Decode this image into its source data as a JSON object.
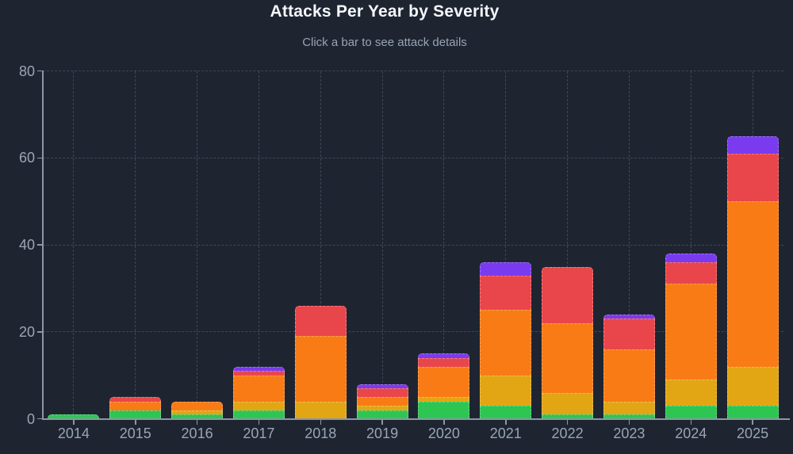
{
  "chart_data": {
    "type": "bar",
    "stacked": true,
    "title": "Attacks Per Year by Severity",
    "subtitle": "Click a bar to see attack details",
    "categories": [
      "2014",
      "2015",
      "2016",
      "2017",
      "2018",
      "2019",
      "2020",
      "2021",
      "2022",
      "2023",
      "2024",
      "2025"
    ],
    "series": [
      {
        "name": "green",
        "color": "#2dc653",
        "values": [
          1,
          2,
          1,
          2,
          0,
          2,
          4,
          3,
          1,
          1,
          3,
          3
        ]
      },
      {
        "name": "yellow",
        "color": "#e2a614",
        "values": [
          0,
          0,
          1,
          2,
          4,
          1,
          1,
          7,
          5,
          3,
          6,
          9
        ]
      },
      {
        "name": "orange",
        "color": "#f97b16",
        "values": [
          0,
          2,
          2,
          6,
          15,
          2,
          7,
          15,
          16,
          12,
          22,
          38
        ]
      },
      {
        "name": "red",
        "color": "#e9464b",
        "values": [
          0,
          1,
          0,
          1,
          7,
          2,
          2,
          8,
          13,
          7,
          5,
          11
        ]
      },
      {
        "name": "purple",
        "color": "#7a3bf0",
        "values": [
          0,
          0,
          0,
          1,
          0,
          1,
          1,
          3,
          0,
          1,
          2,
          4
        ]
      }
    ],
    "totals": [
      1,
      5,
      4,
      12,
      26,
      8,
      15,
      36,
      35,
      24,
      38,
      65
    ],
    "xlabel": "",
    "ylabel": "",
    "ylim": [
      0,
      80
    ],
    "yticks": [
      0,
      20,
      40,
      60,
      80
    ],
    "grid": "dashed",
    "legend": "none"
  },
  "colors": {
    "background": "#1e2531",
    "title": "#f5f7fa",
    "subtitle": "#97a3b4",
    "axis": "#8b97a7",
    "tick_label": "#9aa5b4",
    "gridline": "#96a2b4"
  }
}
